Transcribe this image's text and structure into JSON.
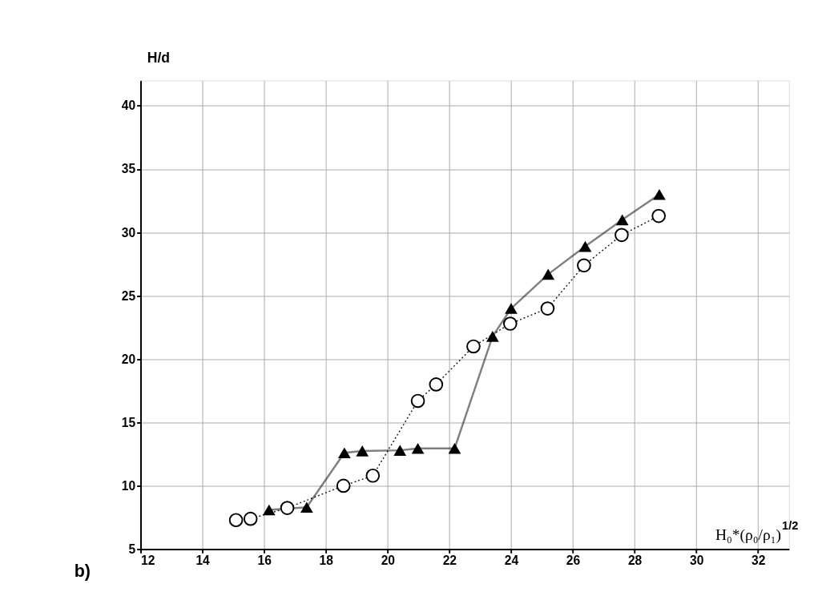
{
  "chart_data": {
    "type": "line",
    "xlabel": "H₀*(ρ₀/ρ₁)$^{1/2}$",
    "ylabel": "H/d",
    "xlim": [
      12,
      33
    ],
    "ylim": [
      5,
      42
    ],
    "xticks": [
      12,
      14,
      16,
      18,
      20,
      22,
      24,
      26,
      28,
      30,
      32
    ],
    "yticks": [
      5,
      10,
      15,
      20,
      25,
      30,
      35,
      40
    ],
    "grid": true,
    "annotations": [
      "b)"
    ],
    "series": [
      {
        "color": "#000000",
        "marker": "triangle",
        "line_style": "solid",
        "x": [
          16.16,
          17.38,
          18.6,
          19.18,
          20.4,
          20.98,
          22.17,
          23.4,
          24.0,
          25.2,
          26.4,
          27.6,
          28.8
        ],
        "values": [
          8.1,
          8.3,
          12.6,
          12.75,
          12.8,
          12.95,
          12.95,
          21.8,
          24.0,
          26.7,
          28.9,
          31.0,
          33.0
        ]
      },
      {
        "color": "#000000",
        "marker": "circle",
        "line_style": "dotted",
        "x": [
          15.09,
          15.56,
          16.75,
          18.57,
          19.52,
          20.98,
          21.57,
          22.78,
          23.97,
          25.18,
          26.36,
          27.58,
          28.78
        ],
        "values": [
          7.29,
          7.39,
          8.25,
          10.0,
          10.8,
          16.7,
          18.0,
          21.0,
          22.8,
          24.0,
          27.4,
          29.8,
          31.3
        ]
      }
    ]
  }
}
